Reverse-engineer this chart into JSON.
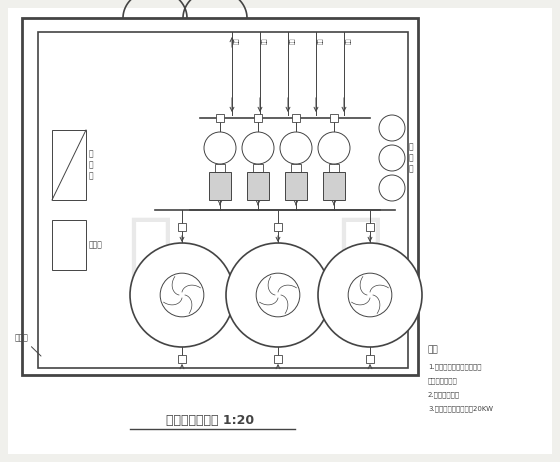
{
  "title": "机房平面布置图 1:20",
  "bg_color": "#f0f0ec",
  "line_color": "#444444",
  "note_title": "注：",
  "notes": [
    "1.机房给水管预留孔高度与",
    "池身给水管一致",
    "2.考虑机房通风",
    "3.考虑足够电源设备的20KW"
  ],
  "label_control": "控\n制\n柜",
  "label_water_tank": "补水箱",
  "label_drug": "投\n药\n器",
  "label_collect_well": "集水井",
  "watermark_color": "#c8c8c8"
}
